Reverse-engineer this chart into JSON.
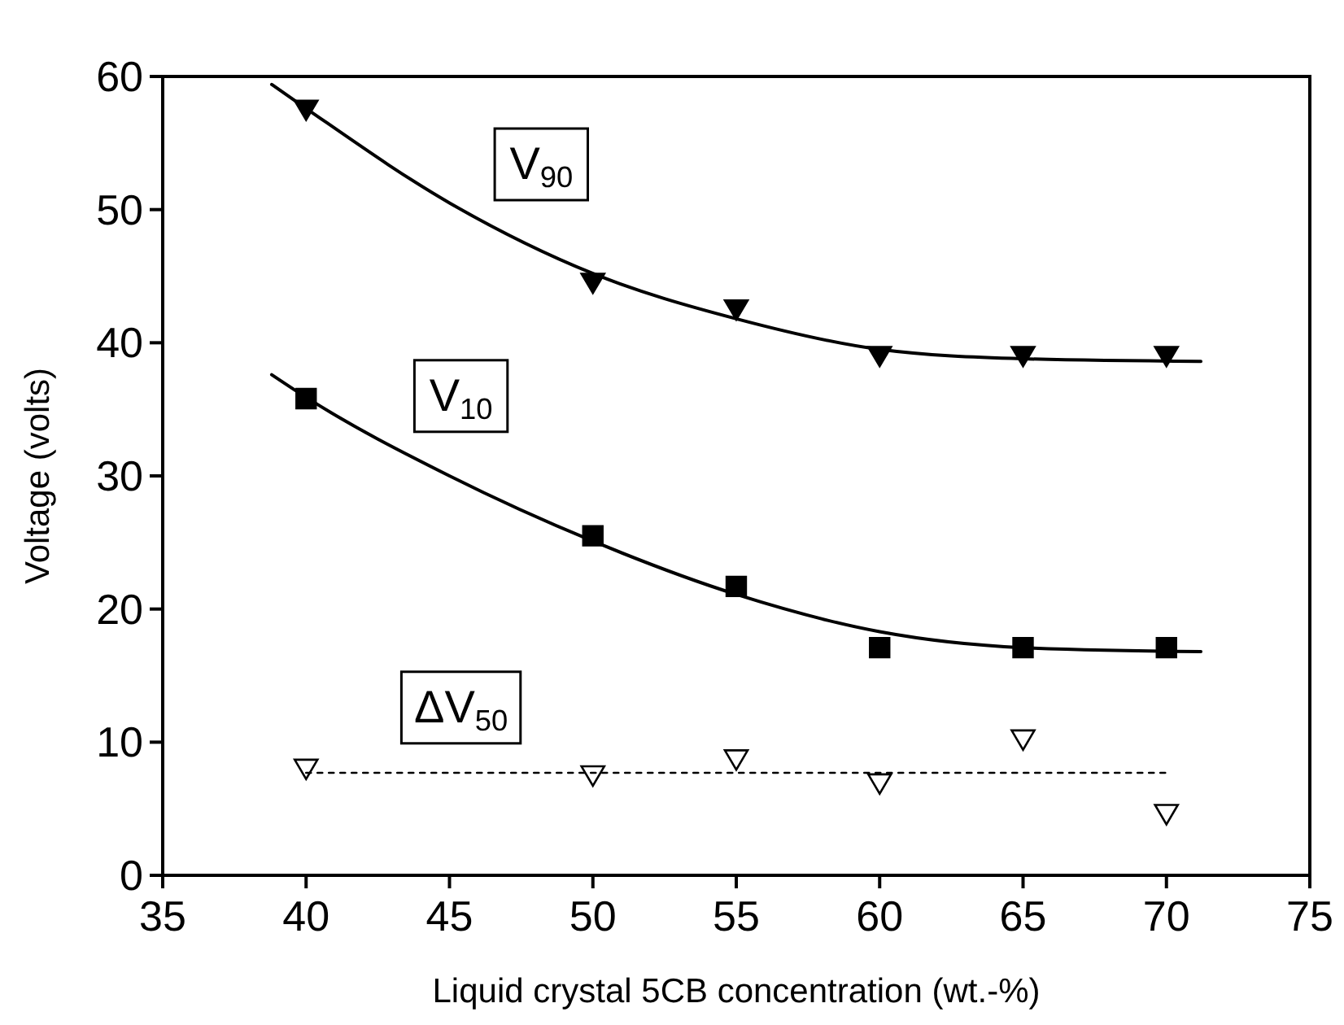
{
  "chart_data": {
    "type": "scatter",
    "xlabel": "Liquid crystal 5CB concentration (wt.-%)",
    "ylabel": "Voltage (volts)",
    "xlim": [
      35,
      75
    ],
    "ylim": [
      0,
      60
    ],
    "xticks": [
      35,
      40,
      45,
      50,
      55,
      60,
      65,
      70,
      75
    ],
    "yticks": [
      0,
      10,
      20,
      30,
      40,
      50,
      60
    ],
    "grid": false,
    "series": [
      {
        "type": "scatter",
        "color": "#000000",
        "marker": "triangle",
        "x": [
          40,
          50,
          55,
          60,
          65,
          70
        ],
        "values": [
          57.5,
          44.5,
          42.5,
          39,
          39,
          39
        ]
      },
      {
        "type": "scatter",
        "color": "#000000",
        "marker": "square",
        "x": [
          40,
          50,
          55,
          60,
          65,
          70
        ],
        "values": [
          35.8,
          25.5,
          21.7,
          17.1,
          17.1,
          17.1
        ]
      },
      {
        "type": "scatter",
        "color": "#ffffff",
        "marker": "triangle",
        "x": [
          40,
          50,
          55,
          60,
          65,
          70
        ],
        "values": [
          8,
          7.5,
          8.7,
          6.9,
          10.2,
          4.6
        ]
      },
      {
        "type": "line",
        "color": "#000000",
        "line_style": "solid",
        "marker": "none",
        "x": [
          38.8,
          40,
          45,
          50,
          55,
          60,
          65,
          71.2
        ],
        "values": [
          59.4,
          57.6,
          50.5,
          45.2,
          41.8,
          39.5,
          38.8,
          38.6
        ]
      },
      {
        "type": "line",
        "color": "#000000",
        "line_style": "solid",
        "marker": "none",
        "x": [
          38.8,
          40,
          45,
          50,
          55,
          60,
          65,
          71.2
        ],
        "values": [
          37.6,
          35.9,
          30,
          25.1,
          21.1,
          18.3,
          17.1,
          16.8
        ]
      },
      {
        "type": "line",
        "color": "#000000",
        "line_style": "dotted",
        "marker": "none",
        "x": [
          40,
          70
        ],
        "values": [
          7.7,
          7.7
        ]
      }
    ],
    "annotations": [
      "V$_{90}$",
      "V$_{10}$",
      "ΔV$_{50}$"
    ]
  }
}
